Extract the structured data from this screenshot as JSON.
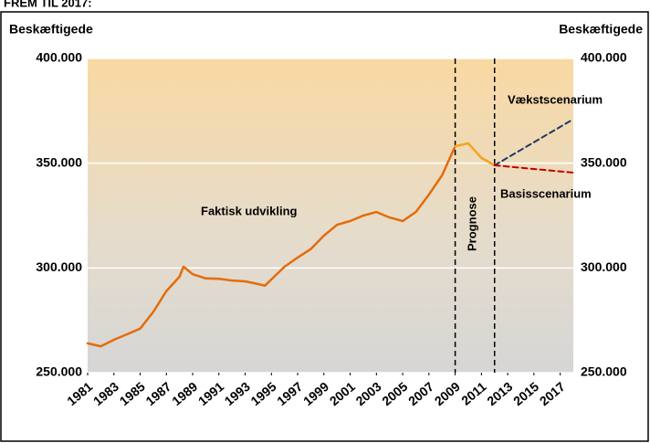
{
  "chart_data": {
    "type": "line",
    "header": "FREM TIL 2017:",
    "ylabel": "Beskæftigede",
    "y2label": "Beskæftigede",
    "xlim": [
      1981,
      2018
    ],
    "ylim": [
      250000,
      400000
    ],
    "y2lim": [
      250000,
      400000
    ],
    "xticks": [
      1981,
      1983,
      1985,
      1987,
      1989,
      1991,
      1993,
      1995,
      1997,
      1999,
      2001,
      2003,
      2005,
      2007,
      2009,
      2011,
      2013,
      2015,
      2017
    ],
    "yticks": [
      {
        "value": 250000,
        "label": "250.000"
      },
      {
        "value": 300000,
        "label": "300.000"
      },
      {
        "value": 350000,
        "label": "350.000"
      },
      {
        "value": 400000,
        "label": "400.000"
      }
    ],
    "y2ticks": [
      {
        "value": 250000,
        "label": "250.000"
      },
      {
        "value": 300000,
        "label": "300.000"
      },
      {
        "value": 350000,
        "label": "350.000"
      },
      {
        "value": 400000,
        "label": "400.000"
      }
    ],
    "grid": true,
    "forecast_lines": [
      2009,
      2012
    ],
    "series": [
      {
        "name": "Faktisk udvikling",
        "color": "#e46c0a",
        "dash": false,
        "x": [
          1981,
          1982,
          1983,
          1984,
          1985,
          1986,
          1987,
          1988,
          1988.3,
          1989,
          1990,
          1991,
          1992,
          1993,
          1994,
          1994.5,
          1995,
          1996,
          1997,
          1998,
          1999,
          2000,
          2001,
          2002,
          2003,
          2004,
          2005,
          2006,
          2007,
          2008,
          2009
        ],
        "values": [
          264000,
          262600,
          265700,
          268300,
          271000,
          279000,
          289000,
          295800,
          300600,
          297000,
          295000,
          294800,
          294000,
          293600,
          292300,
          291500,
          294500,
          300600,
          305000,
          309000,
          315400,
          320600,
          322400,
          325000,
          326700,
          324100,
          322400,
          326700,
          335000,
          344200,
          358100
        ]
      },
      {
        "color": "#f7a21c",
        "dash": false,
        "x": [
          2009,
          2010,
          2011,
          2012
        ],
        "values": [
          358100,
          359500,
          352500,
          349000
        ]
      },
      {
        "name": "Vækstscenarium",
        "color": "#1f3864",
        "dash": true,
        "x": [
          2012,
          2018
        ],
        "values": [
          349000,
          371000
        ]
      },
      {
        "name": "Basisscenarium",
        "color": "#c00000",
        "dash": true,
        "x": [
          2012,
          2018
        ],
        "values": [
          349000,
          345500
        ]
      }
    ],
    "forecast_label": "Prognose"
  }
}
